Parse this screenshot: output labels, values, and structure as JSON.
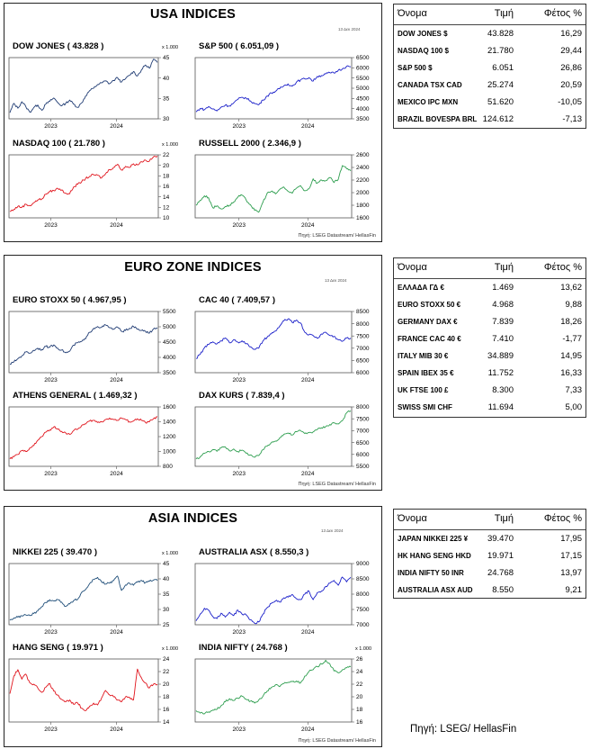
{
  "panels": [
    {
      "title": "USA INDICES",
      "date": "13 Δεκ 2024",
      "source": "Πηγή: LSEG Datastream/ HellasFin"
    },
    {
      "title": "EURO ZONE INDICES",
      "date": "13 Δεκ 2024",
      "source": "Πηγή: LSEG Datastream/ HellasFin"
    },
    {
      "title": "ASIA INDICES",
      "date": "13 Δεκ 2024",
      "source": "Πηγή: LSEG Datastream/ HellasFin"
    }
  ],
  "tables": [
    {
      "headers": {
        "name": "Όνομα",
        "price": "Τιμή",
        "ytd": "Φέτος %"
      },
      "rows": [
        {
          "name": "DOW JONES $",
          "price": "43.828",
          "ytd": "16,29"
        },
        {
          "name": "NASDAQ 100 $",
          "price": "21.780",
          "ytd": "29,44"
        },
        {
          "name": "S&P 500 $",
          "price": "6.051",
          "ytd": "26,86"
        },
        {
          "name": "CANADA TSX CAD",
          "price": "25.274",
          "ytd": "20,59"
        },
        {
          "name": "MEXICO IPC MXN",
          "price": "51.620",
          "ytd": "-10,05"
        },
        {
          "name": "BRAZIL BOVESPA BRL",
          "price": "124.612",
          "ytd": "-7,13"
        }
      ]
    },
    {
      "headers": {
        "name": "Όνομα",
        "price": "Τιμή",
        "ytd": "Φέτος %"
      },
      "rows": [
        {
          "name": "ΕΛΛΑΔΑ ΓΔ €",
          "price": "1.469",
          "ytd": "13,62"
        },
        {
          "name": "EURO STOXX 50 €",
          "price": "4.968",
          "ytd": "9,88"
        },
        {
          "name": "GERMANY DAX €",
          "price": "7.839",
          "ytd": "18,26"
        },
        {
          "name": "FRANCE CAC 40 €",
          "price": "7.410",
          "ytd": "-1,77"
        },
        {
          "name": "ITALY MIB 30 €",
          "price": "34.889",
          "ytd": "14,95"
        },
        {
          "name": "SPAIN IBEX 35 €",
          "price": "11.752",
          "ytd": "16,33"
        },
        {
          "name": "UK FTSE 100 £",
          "price": "8.300",
          "ytd": "7,33"
        },
        {
          "name": "SWISS SMI CHF",
          "price": "11.694",
          "ytd": "5,00"
        }
      ]
    },
    {
      "headers": {
        "name": "Όνομα",
        "price": "Τιμή",
        "ytd": "Φέτος %"
      },
      "rows": [
        {
          "name": "JAPAN NIKKEI 225 ¥",
          "price": "39.470",
          "ytd": "17,95"
        },
        {
          "name": "HK HANG SENG HKD",
          "price": "19.971",
          "ytd": "17,15"
        },
        {
          "name": "INDIA NIFTY 50 INR",
          "price": "24.768",
          "ytd": "13,97"
        },
        {
          "name": "AUSTRALIA ASX AUD",
          "price": "8.550",
          "ytd": "9,21"
        }
      ]
    }
  ],
  "footer": "Πηγή: LSEG/ HellasFin",
  "chart_data": [
    {
      "type": "line",
      "title": "DOW JONES ( 43.828 )",
      "unit": "x 1.000",
      "color": "#1f3b73",
      "ylim": [
        30,
        45
      ],
      "yticks": [
        30,
        35,
        40,
        45
      ],
      "xticks": [
        "2023",
        "2024"
      ],
      "values": [
        31.5,
        33.8,
        32.6,
        34.2,
        33.0,
        31.6,
        32.8,
        33.4,
        32.1,
        33.6,
        34.3,
        35.1,
        34.0,
        33.2,
        33.8,
        34.6,
        33.6,
        32.8,
        33.9,
        35.6,
        36.9,
        37.5,
        38.4,
        38.8,
        39.3,
        38.6,
        39.4,
        40.1,
        39.0,
        39.8,
        40.7,
        41.6,
        40.5,
        42.0,
        43.2,
        42.4,
        44.6,
        43.8
      ]
    },
    {
      "type": "line",
      "title": "S&P 500 ( 6.051,09 )",
      "unit": "",
      "color": "#1a1fc9",
      "ylim": [
        3500,
        6500
      ],
      "yticks": [
        3500,
        4000,
        4500,
        5000,
        5500,
        6000,
        6500
      ],
      "xticks": [
        "2023",
        "2024"
      ],
      "values": [
        3840,
        4010,
        3950,
        4100,
        3980,
        3890,
        4080,
        4170,
        4130,
        4280,
        4450,
        4560,
        4510,
        4380,
        4250,
        4190,
        4420,
        4620,
        4770,
        4850,
        4980,
        5120,
        5210,
        5100,
        5300,
        5410,
        5460,
        5520,
        5350,
        5580,
        5620,
        5700,
        5760,
        5740,
        5880,
        5950,
        6080,
        6051
      ]
    },
    {
      "type": "line",
      "title": "NASDAQ 100 ( 21.780 )",
      "unit": "x 1.000",
      "color": "#e0141c",
      "ylim": [
        10,
        22
      ],
      "yticks": [
        10,
        12,
        14,
        16,
        18,
        20,
        22
      ],
      "xticks": [
        "2023",
        "2024"
      ],
      "values": [
        11.2,
        11.6,
        12.2,
        12.0,
        12.6,
        12.3,
        12.9,
        13.4,
        13.6,
        14.5,
        15.0,
        15.2,
        15.6,
        15.3,
        14.7,
        14.6,
        15.9,
        16.4,
        16.9,
        17.5,
        17.9,
        18.2,
        18.1,
        17.6,
        18.4,
        19.2,
        19.6,
        20.2,
        19.1,
        19.8,
        19.6,
        20.3,
        20.1,
        20.7,
        21.0,
        20.8,
        21.6,
        21.78
      ]
    },
    {
      "type": "line",
      "title": "RUSSELL 2000 ( 2.346,9 )",
      "unit": "",
      "color": "#2e9e4f",
      "ylim": [
        1600,
        2600
      ],
      "yticks": [
        1600,
        1800,
        2000,
        2200,
        2400,
        2600
      ],
      "xticks": [
        "2023",
        "2024"
      ],
      "values": [
        1800,
        1880,
        1950,
        1920,
        1760,
        1790,
        1740,
        1780,
        1800,
        1850,
        1930,
        1960,
        1880,
        1810,
        1720,
        1690,
        1850,
        1990,
        2020,
        1980,
        2050,
        2090,
        2020,
        1990,
        2070,
        2110,
        2030,
        2060,
        2220,
        2150,
        2200,
        2190,
        2240,
        2160,
        2210,
        2430,
        2380,
        2347
      ]
    },
    {
      "type": "line",
      "title": "EURO STOXX 50 ( 4.967,95 )",
      "unit": "",
      "color": "#1f3b73",
      "ylim": [
        3500,
        5500
      ],
      "yticks": [
        3500,
        4000,
        4500,
        5000,
        5500
      ],
      "xticks": [
        "2023",
        "2024"
      ],
      "values": [
        3780,
        3850,
        3960,
        4050,
        4180,
        4140,
        4230,
        4300,
        4250,
        4360,
        4330,
        4410,
        4300,
        4240,
        4150,
        4200,
        4400,
        4480,
        4520,
        4610,
        4820,
        4950,
        5010,
        4980,
        5060,
        4970,
        4920,
        4990,
        4850,
        4880,
        4950,
        5010,
        4920,
        4880,
        4850,
        4790,
        4930,
        4968
      ]
    },
    {
      "type": "line",
      "title": "CAC 40 ( 7.409,57 )",
      "unit": "",
      "color": "#1a1fc9",
      "ylim": [
        6000,
        8500
      ],
      "yticks": [
        6000,
        6500,
        7000,
        7500,
        8000,
        8500
      ],
      "xticks": [
        "2023",
        "2024"
      ],
      "values": [
        6580,
        6750,
        7020,
        7150,
        7260,
        7180,
        7300,
        7420,
        7220,
        7350,
        7250,
        7300,
        7180,
        7060,
        6960,
        7000,
        7300,
        7450,
        7590,
        7700,
        7900,
        8120,
        8200,
        8050,
        8150,
        8030,
        7650,
        7550,
        7520,
        7400,
        7580,
        7650,
        7520,
        7480,
        7350,
        7280,
        7420,
        7410
      ]
    },
    {
      "type": "line",
      "title": "ATHENS GENERAL ( 1.469,32 )",
      "unit": "",
      "color": "#e0141c",
      "ylim": [
        800,
        1600
      ],
      "yticks": [
        800,
        1000,
        1200,
        1400,
        1600
      ],
      "xticks": [
        "2023",
        "2024"
      ],
      "values": [
        900,
        930,
        960,
        1010,
        1000,
        1050,
        1080,
        1150,
        1200,
        1260,
        1290,
        1330,
        1300,
        1270,
        1250,
        1230,
        1280,
        1300,
        1350,
        1370,
        1410,
        1420,
        1390,
        1400,
        1430,
        1450,
        1430,
        1420,
        1450,
        1430,
        1400,
        1410,
        1440,
        1420,
        1390,
        1400,
        1440,
        1469
      ]
    },
    {
      "type": "line",
      "title": "DAX KURS ( 7.839,4 )",
      "unit": "",
      "color": "#2e9e4f",
      "ylim": [
        5500,
        8000
      ],
      "yticks": [
        5500,
        6000,
        6500,
        7000,
        7500,
        8000
      ],
      "xticks": [
        "2023",
        "2024"
      ],
      "values": [
        5810,
        5900,
        6050,
        6120,
        6200,
        6130,
        6280,
        6320,
        6150,
        6230,
        6120,
        6180,
        6050,
        5980,
        5880,
        5950,
        6200,
        6350,
        6500,
        6560,
        6700,
        6850,
        6900,
        6820,
        6960,
        7000,
        6880,
        6920,
        6950,
        7050,
        7120,
        7170,
        7260,
        7330,
        7280,
        7420,
        7750,
        7839
      ]
    },
    {
      "type": "line",
      "title": "NIKKEI 225 ( 39.470 )",
      "unit": "x 1.000",
      "color": "#1f4e79",
      "ylim": [
        25,
        45
      ],
      "yticks": [
        25,
        30,
        35,
        40,
        45
      ],
      "xticks": [
        "2023",
        "2024"
      ],
      "values": [
        26.5,
        27.2,
        27.5,
        27.9,
        28.2,
        28.0,
        28.7,
        29.5,
        30.9,
        32.3,
        33.2,
        32.8,
        33.2,
        32.4,
        31.0,
        31.8,
        32.9,
        33.3,
        35.6,
        36.5,
        38.4,
        39.8,
        40.5,
        39.0,
        38.3,
        38.6,
        39.4,
        40.9,
        36.2,
        38.0,
        38.6,
        37.9,
        38.9,
        39.5,
        38.7,
        39.2,
        39.6,
        39.47
      ]
    },
    {
      "type": "line",
      "title": "AUSTRALIA ASX ( 8.550,3 )",
      "unit": "",
      "color": "#1a1fc9",
      "ylim": [
        7000,
        9000
      ],
      "yticks": [
        7000,
        7500,
        8000,
        8500,
        9000
      ],
      "xticks": [
        "2023",
        "2024"
      ],
      "values": [
        7130,
        7350,
        7540,
        7480,
        7270,
        7200,
        7380,
        7250,
        7410,
        7300,
        7480,
        7350,
        7320,
        7160,
        7050,
        7090,
        7350,
        7560,
        7700,
        7780,
        7740,
        7880,
        7900,
        7990,
        7850,
        7820,
        8000,
        8100,
        7820,
        8050,
        8100,
        8250,
        8360,
        8450,
        8290,
        8560,
        8400,
        8550
      ]
    },
    {
      "type": "line",
      "title": "HANG SENG ( 19.971 )",
      "unit": "x 1.000",
      "color": "#e0141c",
      "ylim": [
        14,
        24
      ],
      "yticks": [
        14,
        16,
        18,
        20,
        22,
        24
      ],
      "xticks": [
        "2023",
        "2024"
      ],
      "values": [
        18.5,
        21.3,
        22.3,
        20.8,
        21.6,
        20.2,
        20.0,
        19.4,
        18.7,
        19.5,
        20.1,
        18.9,
        18.3,
        17.6,
        17.2,
        17.5,
        16.8,
        17.0,
        16.2,
        15.8,
        16.5,
        17.0,
        16.7,
        17.8,
        19.0,
        18.3,
        18.0,
        17.5,
        17.2,
        18.0,
        17.9,
        17.5,
        22.4,
        21.0,
        20.2,
        19.4,
        20.0,
        19.97
      ]
    },
    {
      "type": "line",
      "title": "INDIA NIFTY ( 24.768 )",
      "unit": "x 1.000",
      "color": "#2e9e4f",
      "ylim": [
        16,
        26
      ],
      "yticks": [
        16,
        18,
        20,
        22,
        24,
        26
      ],
      "xticks": [
        "2023",
        "2024"
      ],
      "values": [
        17.8,
        17.4,
        17.3,
        17.6,
        17.9,
        18.0,
        18.6,
        19.2,
        19.7,
        19.4,
        19.8,
        20.1,
        19.6,
        19.3,
        19.0,
        19.5,
        20.1,
        20.9,
        21.5,
        21.9,
        21.6,
        22.1,
        22.3,
        22.4,
        22.5,
        22.2,
        23.3,
        24.0,
        24.3,
        24.8,
        25.2,
        25.8,
        25.2,
        24.1,
        23.8,
        24.3,
        24.6,
        24.77
      ]
    }
  ]
}
